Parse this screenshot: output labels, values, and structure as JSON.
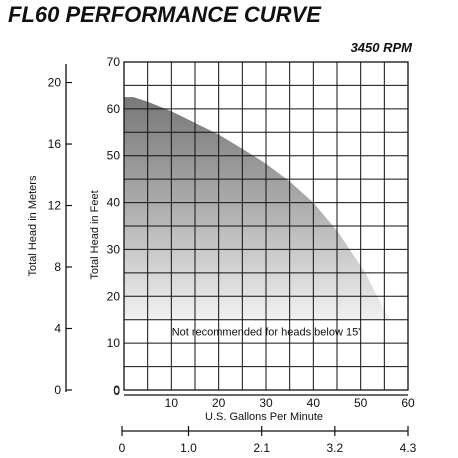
{
  "title": "FL60 PERFORMANCE CURVE",
  "rpm": "3450 RPM",
  "chart_data": {
    "type": "area",
    "xlabel": "U.S. Gallons Per Minute",
    "ylabel": "Total Head in Feet",
    "ylabel_secondary": "Total Head in Meters",
    "xlim": [
      0,
      60
    ],
    "ylim": [
      0,
      70
    ],
    "x_ticks": [
      "10",
      "20",
      "30",
      "40",
      "50",
      "60"
    ],
    "x_origin_label": "0",
    "y_ticks": [
      "0",
      "10",
      "20",
      "30",
      "40",
      "50",
      "60",
      "70"
    ],
    "meters_ticks": [
      "0",
      "4",
      "8",
      "12",
      "16",
      "20"
    ],
    "meters_values": [
      0,
      4,
      8,
      12,
      16,
      20
    ],
    "bottom_ticks": [
      "0",
      "1.0",
      "2.1",
      "3.2",
      "4.3"
    ],
    "bottom_values": [
      0,
      1.0,
      2.1,
      3.2,
      4.3
    ],
    "bottom_max": 4.3,
    "annotation": "Not recommended for heads below 15'",
    "annotation_at": {
      "x": 30,
      "y": 12.5
    },
    "threshold_y": 15,
    "grid": true,
    "x": [
      0,
      2,
      5,
      10,
      15,
      20,
      25,
      30,
      35,
      40,
      45,
      48,
      51,
      53,
      55,
      56.5
    ],
    "y": [
      62.5,
      62.5,
      61.5,
      59.5,
      57,
      54.5,
      51.5,
      48.3,
      44.5,
      40,
      34,
      29.5,
      25,
      21,
      17,
      15
    ]
  }
}
